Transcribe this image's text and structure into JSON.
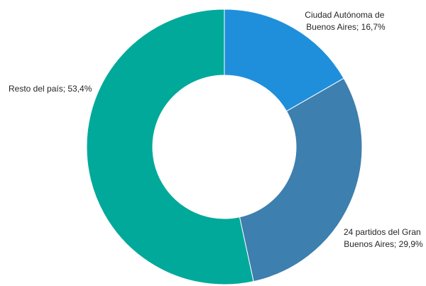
{
  "chart_data": {
    "type": "pie",
    "donut": true,
    "title": "",
    "slices": [
      {
        "name": "Ciudad Autónoma de Buenos Aires",
        "value": 16.7,
        "label_lines": [
          "Ciudad Autónoma de",
          "Buenos Aires; 16,7%"
        ],
        "color": "#1f8fdb"
      },
      {
        "name": "24 partidos del Gran Buenos Aires",
        "value": 29.9,
        "label_lines": [
          "24 partidos del Gran",
          "Buenos Aires; 29,9%"
        ],
        "color": "#3d7fae"
      },
      {
        "name": "Resto del país",
        "value": 53.4,
        "label_lines": [
          "Resto del país; 53,4%"
        ],
        "color": "#00a99a"
      }
    ],
    "legend": "none",
    "grid": false
  }
}
